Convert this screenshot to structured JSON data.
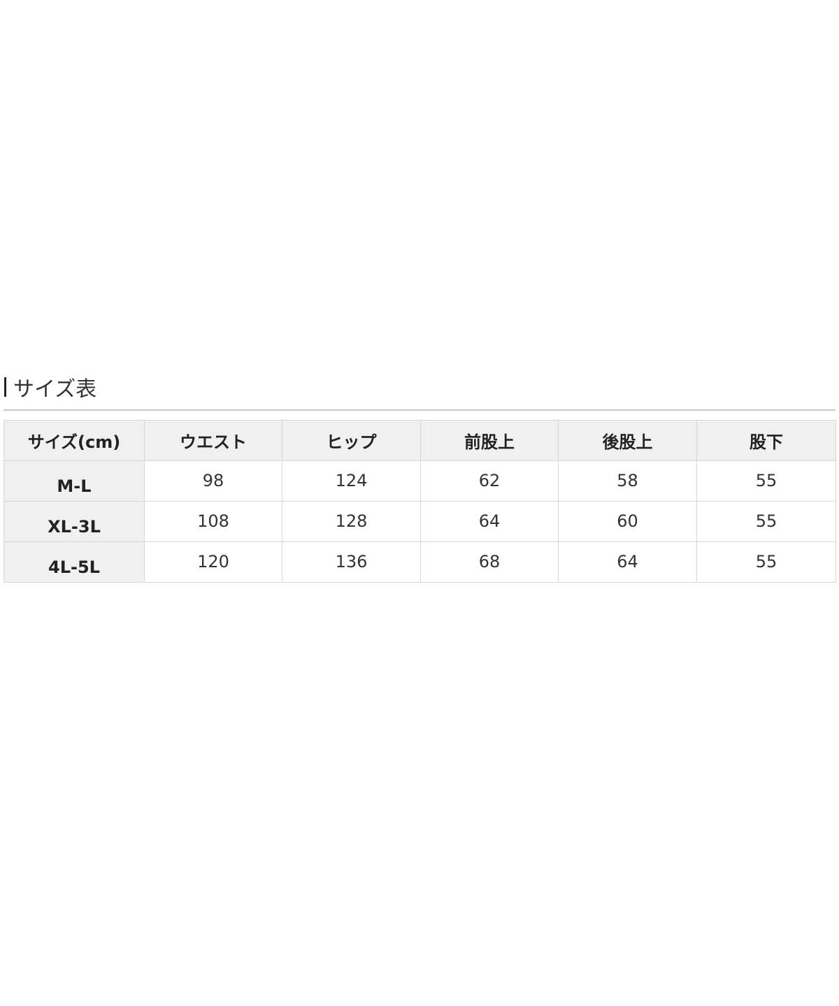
{
  "title": "サイズ表",
  "table": {
    "headers": [
      "サイズ(cm)",
      "ウエスト",
      "ヒップ",
      "前股上",
      "後股上",
      "股下"
    ],
    "rows": [
      {
        "size": "M-L",
        "values": [
          "98",
          "124",
          "62",
          "58",
          "55"
        ]
      },
      {
        "size": "XL-3L",
        "values": [
          "108",
          "128",
          "64",
          "60",
          "55"
        ]
      },
      {
        "size": "4L-5L",
        "values": [
          "120",
          "136",
          "68",
          "64",
          "55"
        ]
      }
    ]
  }
}
